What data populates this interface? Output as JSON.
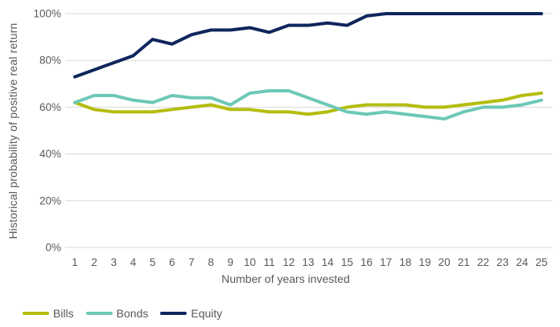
{
  "chart_data": {
    "type": "line",
    "title": "",
    "xlabel": "Number of years invested",
    "ylabel": "Historical probability of positive real return",
    "x": [
      1,
      2,
      3,
      4,
      5,
      6,
      7,
      8,
      9,
      10,
      11,
      12,
      13,
      14,
      15,
      16,
      17,
      18,
      19,
      20,
      21,
      22,
      23,
      24,
      25
    ],
    "series": [
      {
        "name": "Bills",
        "color": "#b4bd0e",
        "values": [
          62,
          59,
          58,
          58,
          58,
          59,
          60,
          61,
          59,
          59,
          58,
          58,
          57,
          58,
          60,
          61,
          61,
          61,
          60,
          60,
          61,
          62,
          63,
          65,
          66
        ]
      },
      {
        "name": "Bonds",
        "color": "#6dc8b7",
        "values": [
          62,
          65,
          65,
          63,
          62,
          65,
          64,
          64,
          61,
          66,
          67,
          67,
          64,
          61,
          58,
          57,
          58,
          57,
          56,
          55,
          58,
          60,
          60,
          61,
          63
        ]
      },
      {
        "name": "Equity",
        "color": "#0f265c",
        "values": [
          73,
          76,
          79,
          82,
          89,
          87,
          91,
          93,
          93,
          94,
          92,
          95,
          95,
          96,
          95,
          99,
          100,
          100,
          100,
          100,
          100,
          100,
          100,
          100,
          100
        ]
      }
    ],
    "ylim": [
      0,
      100
    ],
    "y_ticks": [
      0,
      20,
      40,
      60,
      80,
      100
    ],
    "y_tick_suffix": "%",
    "x_ticks": [
      1,
      2,
      3,
      4,
      5,
      6,
      7,
      8,
      9,
      10,
      11,
      12,
      13,
      14,
      15,
      16,
      17,
      18,
      19,
      20,
      21,
      22,
      23,
      24,
      25
    ],
    "grid": "horizontal",
    "gridline_color": "#d9d9d9",
    "tick_label_color": "#595959",
    "legend_position": "bottom-left",
    "legend_labels": [
      "Bills",
      "Bonds",
      "Equity"
    ]
  }
}
